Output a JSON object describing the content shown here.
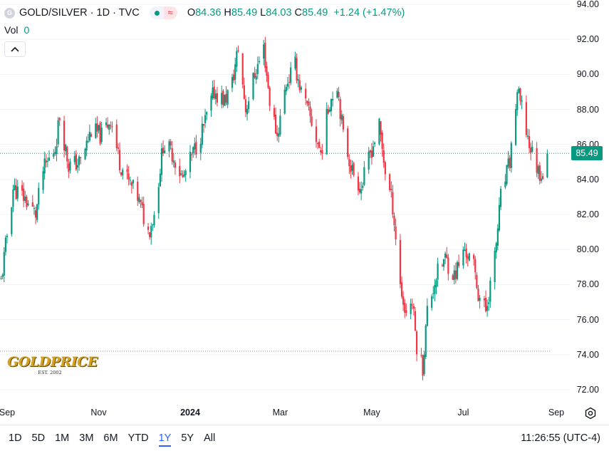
{
  "legend": {
    "badge": "G",
    "symbol": "GOLD/SILVER · 1D · TVC",
    "wave": "≈",
    "ohlc": [
      {
        "label": "O",
        "value": "84.36"
      },
      {
        "label": "H",
        "value": "85.49"
      },
      {
        "label": "L",
        "value": "84.03"
      },
      {
        "label": "C",
        "value": "85.49"
      }
    ],
    "change": "+1.24 (+1.47%)"
  },
  "volume": {
    "label": "Vol",
    "value": "0"
  },
  "price_badge": "85.49",
  "logo": {
    "name": "GOLDPRICE",
    "sub": "EST. 2002"
  },
  "time_ranges": [
    {
      "label": "1D",
      "active": false
    },
    {
      "label": "5D",
      "active": false
    },
    {
      "label": "1M",
      "active": false
    },
    {
      "label": "3M",
      "active": false
    },
    {
      "label": "6M",
      "active": false
    },
    {
      "label": "YTD",
      "active": false
    },
    {
      "label": "1Y",
      "active": true
    },
    {
      "label": "5Y",
      "active": false
    },
    {
      "label": "All",
      "active": false
    }
  ],
  "clock": "11:26:55 (UTC-4)",
  "colors": {
    "up": "#089981",
    "down": "#f23645",
    "accent": "#2962ff"
  },
  "icons": {
    "collapse": "chevron-up-icon",
    "settings": "gear-icon"
  },
  "chart_data": {
    "type": "candlestick",
    "y_ticks": [
      "94.00",
      "92.00",
      "90.00",
      "88.00",
      "86.00",
      "84.00",
      "82.00",
      "80.00",
      "78.00",
      "76.00",
      "74.00",
      "72.00"
    ],
    "ylim": [
      72,
      94
    ],
    "x_ticks": [
      {
        "label": "Sep",
        "bold": false
      },
      {
        "label": "Nov",
        "bold": false
      },
      {
        "label": "2024",
        "bold": true
      },
      {
        "label": "Mar",
        "bold": false
      },
      {
        "label": "May",
        "bold": false
      },
      {
        "label": "Jul",
        "bold": false
      },
      {
        "label": "Sep",
        "bold": false
      }
    ],
    "last_close": 85.49,
    "reference_level": 74.2,
    "anchors": [
      [
        "2023-08-28",
        78.2
      ],
      [
        "2023-09-05",
        83.5
      ],
      [
        "2023-09-12",
        83.0
      ],
      [
        "2023-09-20",
        82.0
      ],
      [
        "2023-09-25",
        84.5
      ],
      [
        "2023-10-03",
        85.8
      ],
      [
        "2023-10-06",
        87.6
      ],
      [
        "2023-10-12",
        84.8
      ],
      [
        "2023-10-20",
        85.0
      ],
      [
        "2023-10-27",
        86.8
      ],
      [
        "2023-11-03",
        86.5
      ],
      [
        "2023-11-09",
        87.5
      ],
      [
        "2023-11-15",
        85.0
      ],
      [
        "2023-11-20",
        84.0
      ],
      [
        "2023-11-27",
        83.0
      ],
      [
        "2023-12-04",
        81.0
      ],
      [
        "2023-12-08",
        82.0
      ],
      [
        "2023-12-14",
        86.0
      ],
      [
        "2023-12-20",
        85.5
      ],
      [
        "2023-12-27",
        84.0
      ],
      [
        "2024-01-03",
        85.5
      ],
      [
        "2024-01-10",
        87.0
      ],
      [
        "2024-01-17",
        89.0
      ],
      [
        "2024-01-24",
        88.5
      ],
      [
        "2024-01-29",
        89.5
      ],
      [
        "2024-02-02",
        91.5
      ],
      [
        "2024-02-07",
        88.0
      ],
      [
        "2024-02-13",
        90.0
      ],
      [
        "2024-02-19",
        91.5
      ],
      [
        "2024-02-23",
        88.5
      ],
      [
        "2024-02-28",
        86.5
      ],
      [
        "2024-03-05",
        89.5
      ],
      [
        "2024-03-11",
        90.5
      ],
      [
        "2024-03-15",
        89.0
      ],
      [
        "2024-03-21",
        87.5
      ],
      [
        "2024-03-28",
        85.5
      ],
      [
        "2024-04-03",
        88.5
      ],
      [
        "2024-04-08",
        89.5
      ],
      [
        "2024-04-12",
        86.5
      ],
      [
        "2024-04-18",
        84.5
      ],
      [
        "2024-04-24",
        83.5
      ],
      [
        "2024-04-30",
        85.5
      ],
      [
        "2024-05-06",
        87.0
      ],
      [
        "2024-05-10",
        84.5
      ],
      [
        "2024-05-15",
        82.5
      ],
      [
        "2024-05-20",
        78.0
      ],
      [
        "2024-05-23",
        76.5
      ],
      [
        "2024-05-28",
        77.0
      ],
      [
        "2024-05-31",
        74.5
      ],
      [
        "2024-06-04",
        73.3
      ],
      [
        "2024-06-07",
        76.5
      ],
      [
        "2024-06-13",
        78.5
      ],
      [
        "2024-06-19",
        79.5
      ],
      [
        "2024-06-25",
        78.5
      ],
      [
        "2024-07-02",
        80.0
      ],
      [
        "2024-07-08",
        79.0
      ],
      [
        "2024-07-11",
        77.5
      ],
      [
        "2024-07-16",
        76.5
      ],
      [
        "2024-07-22",
        79.5
      ],
      [
        "2024-07-26",
        83.0
      ],
      [
        "2024-08-01",
        85.0
      ],
      [
        "2024-08-06",
        89.0
      ],
      [
        "2024-08-09",
        88.0
      ],
      [
        "2024-08-14",
        86.0
      ],
      [
        "2024-08-20",
        84.5
      ],
      [
        "2024-08-23",
        84.3
      ],
      [
        "2024-08-26",
        85.49
      ]
    ]
  }
}
